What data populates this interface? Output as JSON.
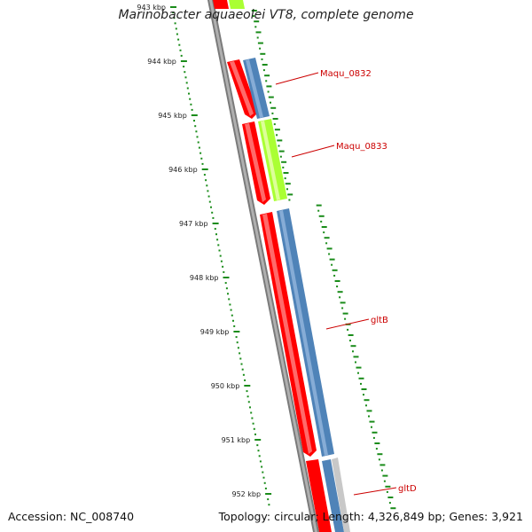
{
  "title": "Marinobacter aquaeolei VT8, complete genome",
  "footer": {
    "accession": "Accession: NC_008740",
    "summary": "Topology: circular; Length: 4,326,849 bp; Genes: 3,921"
  },
  "ticks": [
    {
      "label": "943 kbp",
      "pos_kbp": 943
    },
    {
      "label": "944 kbp",
      "pos_kbp": 944
    },
    {
      "label": "945 kbp",
      "pos_kbp": 945
    },
    {
      "label": "946 kbp",
      "pos_kbp": 946
    },
    {
      "label": "947 kbp",
      "pos_kbp": 947
    },
    {
      "label": "948 kbp",
      "pos_kbp": 948
    },
    {
      "label": "949 kbp",
      "pos_kbp": 949
    },
    {
      "label": "950 kbp",
      "pos_kbp": 950
    },
    {
      "label": "951 kbp",
      "pos_kbp": 951
    },
    {
      "label": "952 kbp",
      "pos_kbp": 952
    }
  ],
  "gene_labels": [
    {
      "name": "Maqu_0832"
    },
    {
      "name": "Maqu_0833"
    },
    {
      "name": "gltB"
    },
    {
      "name": "gltD"
    }
  ],
  "colors": {
    "cds": "#ff0000",
    "gene_blue": "#4f83b8",
    "gene_green": "#aaff33",
    "backbone": "#888888",
    "ticks": "#1a8c1a",
    "label": "#cc0000"
  }
}
